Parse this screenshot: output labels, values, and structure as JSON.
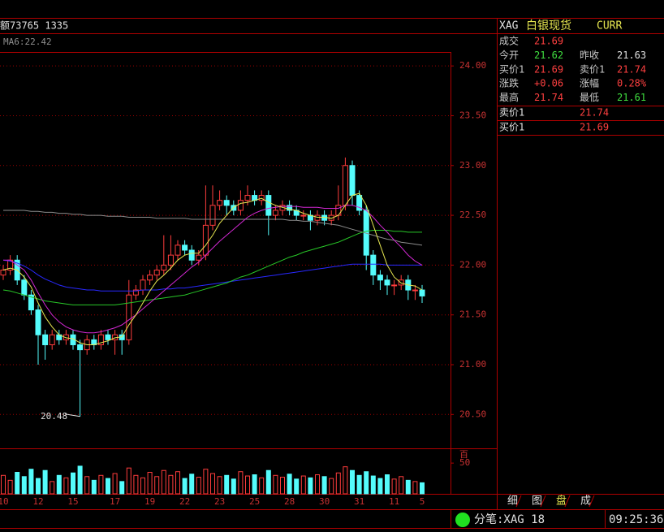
{
  "header": {
    "left": "额73765 1335",
    "ma": "MA6:22.42"
  },
  "chart_data": {
    "type": "candlestick",
    "categories": [
      "10",
      null,
      null,
      null,
      null,
      "12",
      null,
      null,
      null,
      null,
      "15",
      null,
      null,
      null,
      null,
      null,
      "17",
      null,
      null,
      null,
      null,
      "19",
      null,
      null,
      null,
      null,
      "22",
      null,
      null,
      null,
      null,
      "23",
      null,
      null,
      null,
      null,
      "25",
      null,
      null,
      null,
      null,
      "28",
      null,
      null,
      null,
      null,
      "30",
      null,
      null,
      null,
      null,
      "31",
      null,
      null,
      null,
      null,
      "11",
      null,
      null,
      null,
      "5"
    ],
    "open": [
      21.9,
      21.95,
      22.05,
      21.85,
      21.7,
      21.55,
      21.3,
      21.2,
      21.3,
      21.25,
      21.3,
      21.2,
      21.15,
      21.25,
      21.2,
      21.3,
      21.25,
      21.3,
      21.25,
      21.7,
      21.75,
      21.85,
      21.9,
      21.95,
      22.0,
      22.1,
      22.2,
      22.15,
      22.05,
      22.1,
      22.4,
      22.6,
      22.65,
      22.6,
      22.55,
      22.65,
      22.7,
      22.65,
      22.7,
      22.5,
      22.55,
      22.6,
      22.55,
      22.5,
      22.5,
      22.45,
      22.5,
      22.45,
      22.5,
      22.6,
      23.0,
      22.7,
      22.55,
      22.1,
      21.9,
      21.85,
      21.8,
      21.8,
      21.85,
      21.75,
      21.75
    ],
    "high": [
      22.0,
      22.1,
      22.1,
      21.9,
      21.75,
      21.6,
      21.35,
      21.35,
      21.35,
      21.35,
      21.35,
      21.25,
      21.3,
      21.3,
      21.35,
      21.35,
      21.35,
      21.35,
      21.85,
      21.8,
      21.9,
      21.95,
      22.0,
      22.3,
      22.3,
      22.25,
      22.25,
      22.2,
      22.15,
      22.8,
      22.8,
      22.75,
      22.7,
      22.65,
      22.75,
      22.8,
      22.75,
      22.75,
      22.75,
      22.6,
      22.65,
      22.65,
      22.6,
      22.55,
      22.55,
      22.55,
      22.55,
      22.55,
      22.8,
      23.08,
      23.05,
      22.75,
      22.6,
      22.15,
      21.95,
      21.9,
      21.85,
      21.9,
      21.9,
      21.8,
      21.8
    ],
    "low": [
      21.85,
      21.9,
      21.8,
      21.65,
      21.5,
      21.0,
      21.05,
      21.15,
      21.2,
      21.2,
      21.15,
      20.48,
      21.1,
      21.15,
      21.15,
      21.2,
      21.1,
      21.1,
      21.2,
      21.65,
      21.7,
      21.8,
      21.85,
      21.9,
      21.95,
      22.05,
      22.1,
      22.0,
      22.0,
      22.05,
      22.35,
      22.55,
      22.5,
      22.5,
      22.5,
      22.6,
      22.6,
      22.6,
      22.3,
      22.45,
      22.5,
      22.5,
      22.45,
      22.45,
      22.35,
      22.4,
      22.4,
      22.4,
      22.45,
      22.55,
      22.6,
      22.5,
      21.95,
      21.8,
      21.75,
      21.7,
      21.7,
      21.75,
      21.65,
      21.65,
      21.62
    ],
    "close": [
      21.95,
      22.05,
      21.85,
      21.7,
      21.55,
      21.3,
      21.2,
      21.3,
      21.25,
      21.3,
      21.2,
      21.15,
      21.25,
      21.2,
      21.3,
      21.25,
      21.3,
      21.25,
      21.7,
      21.75,
      21.85,
      21.9,
      21.95,
      22.0,
      22.1,
      22.2,
      22.15,
      22.05,
      22.1,
      22.4,
      22.6,
      22.65,
      22.6,
      22.55,
      22.65,
      22.7,
      22.65,
      22.7,
      22.5,
      22.55,
      22.6,
      22.55,
      22.5,
      22.5,
      22.45,
      22.5,
      22.45,
      22.5,
      22.6,
      23.0,
      22.7,
      22.55,
      22.1,
      21.9,
      21.85,
      21.8,
      21.8,
      21.85,
      21.75,
      21.75,
      21.69
    ],
    "up_color": "#ff3c3c",
    "down_color": "#54fcfc",
    "ma_lines": [
      {
        "color": "#8c8c8c",
        "values": [
          22.55,
          22.55,
          22.55,
          22.55,
          22.54,
          22.54,
          22.53,
          22.53,
          22.52,
          22.52,
          22.51,
          22.51,
          22.5,
          22.5,
          22.5,
          22.49,
          22.49,
          22.49,
          22.48,
          22.48,
          22.48,
          22.48,
          22.47,
          22.47,
          22.47,
          22.47,
          22.47,
          22.46,
          22.46,
          22.46,
          22.46,
          22.46,
          22.46,
          22.46,
          22.46,
          22.46,
          22.46,
          22.46,
          22.46,
          22.46,
          22.46,
          22.45,
          22.45,
          22.44,
          22.44,
          22.43,
          22.42,
          22.41,
          22.4,
          22.38,
          22.36,
          22.34,
          22.32,
          22.3,
          22.28,
          22.26,
          22.25,
          22.23,
          22.22,
          22.21,
          22.2
        ]
      },
      {
        "color": "#2828ff",
        "values": [
          22.05,
          22.04,
          22.02,
          21.99,
          21.95,
          21.9,
          21.86,
          21.83,
          21.8,
          21.78,
          21.77,
          21.76,
          21.75,
          21.75,
          21.74,
          21.74,
          21.74,
          21.74,
          21.74,
          21.74,
          21.75,
          21.75,
          21.75,
          21.76,
          21.76,
          21.77,
          21.77,
          21.78,
          21.79,
          21.8,
          21.81,
          21.82,
          21.83,
          21.84,
          21.85,
          21.86,
          21.87,
          21.88,
          21.89,
          21.9,
          21.91,
          21.92,
          21.93,
          21.94,
          21.95,
          21.96,
          21.97,
          21.98,
          21.99,
          22.0,
          22.01,
          22.01,
          22.01,
          22.01,
          22.01,
          22.0,
          22.0,
          22.0,
          22.0,
          22.0,
          22.0
        ]
      },
      {
        "color": "#28c828",
        "values": [
          21.75,
          21.74,
          21.72,
          21.7,
          21.68,
          21.66,
          21.64,
          21.63,
          21.62,
          21.61,
          21.6,
          21.6,
          21.6,
          21.6,
          21.6,
          21.6,
          21.6,
          21.61,
          21.62,
          21.63,
          21.64,
          21.65,
          21.66,
          21.67,
          21.68,
          21.69,
          21.7,
          21.72,
          21.74,
          21.76,
          21.78,
          21.8,
          21.82,
          21.85,
          21.88,
          21.9,
          21.93,
          21.96,
          21.99,
          22.02,
          22.05,
          22.08,
          22.1,
          22.13,
          22.15,
          22.17,
          22.19,
          22.21,
          22.23,
          22.26,
          22.29,
          22.32,
          22.34,
          22.35,
          22.35,
          22.35,
          22.34,
          22.34,
          22.33,
          22.33,
          22.33
        ]
      },
      {
        "color": "#d228d2",
        "values": [
          22.05,
          22.05,
          22.0,
          21.95,
          21.85,
          21.72,
          21.6,
          21.5,
          21.43,
          21.38,
          21.35,
          21.33,
          21.32,
          21.32,
          21.33,
          21.35,
          21.37,
          21.4,
          21.45,
          21.5,
          21.56,
          21.62,
          21.68,
          21.74,
          21.8,
          21.86,
          21.92,
          21.98,
          22.03,
          22.1,
          22.17,
          22.24,
          22.3,
          22.36,
          22.42,
          22.48,
          22.52,
          22.55,
          22.57,
          22.58,
          22.59,
          22.59,
          22.59,
          22.58,
          22.58,
          22.58,
          22.57,
          22.57,
          22.57,
          22.6,
          22.6,
          22.58,
          22.55,
          22.48,
          22.4,
          22.33,
          22.25,
          22.18,
          22.1,
          22.04,
          22.0
        ]
      },
      {
        "color": "#e6e650",
        "values": [
          21.95,
          21.97,
          21.95,
          21.88,
          21.78,
          21.62,
          21.48,
          21.38,
          21.3,
          21.27,
          21.26,
          21.22,
          21.2,
          21.2,
          21.22,
          21.24,
          21.27,
          21.28,
          21.4,
          21.5,
          21.62,
          21.74,
          21.84,
          21.9,
          21.97,
          22.05,
          22.1,
          22.12,
          22.12,
          22.2,
          22.3,
          22.42,
          22.5,
          22.58,
          22.62,
          22.63,
          22.65,
          22.67,
          22.63,
          22.6,
          22.58,
          22.56,
          22.55,
          22.52,
          22.5,
          22.48,
          22.48,
          22.47,
          22.5,
          22.6,
          22.7,
          22.72,
          22.6,
          22.4,
          22.2,
          22.0,
          21.88,
          21.82,
          21.8,
          21.79,
          21.75
        ]
      }
    ],
    "ylim": [
      20.16,
      24.14
    ],
    "yticks": [
      {
        "value": 20.5,
        "label": "20.50"
      },
      {
        "value": 21,
        "label": "21.00"
      },
      {
        "value": 21.5,
        "label": "21.50"
      },
      {
        "value": 22,
        "label": "22.00"
      },
      {
        "value": 22.5,
        "label": "22.50"
      },
      {
        "value": 23,
        "label": "23.00"
      },
      {
        "value": 23.5,
        "label": "23.50"
      },
      {
        "value": 24,
        "label": "24.00"
      }
    ],
    "grid": true,
    "volume": [
      30,
      22,
      35,
      28,
      40,
      25,
      38,
      20,
      30,
      26,
      34,
      45,
      28,
      22,
      30,
      25,
      33,
      20,
      42,
      30,
      26,
      35,
      28,
      38,
      30,
      36,
      25,
      32,
      27,
      40,
      33,
      28,
      30,
      24,
      36,
      29,
      31,
      26,
      38,
      30,
      27,
      32,
      24,
      29,
      26,
      31,
      28,
      25,
      34,
      44,
      38,
      30,
      36,
      29,
      25,
      31,
      24,
      28,
      22,
      20,
      18
    ],
    "volume_ylim": [
      0,
      70
    ],
    "volume_yticks": [
      50
    ],
    "volume_unit": "百"
  },
  "quote": {
    "symbol": "XAG",
    "name": "白银现货",
    "tag": "CURR",
    "rows": [
      [
        "成交",
        "21.69"
      ],
      [
        "今开",
        "21.62",
        "昨收",
        "21.63"
      ],
      [
        "买价1",
        "21.69",
        "卖价1",
        "21.74"
      ],
      [
        "涨跌",
        "+0.06",
        "涨幅",
        "0.28%"
      ],
      [
        "最高",
        "21.74",
        "最低",
        "21.61"
      ]
    ],
    "ask": [
      "卖价1",
      "21.74"
    ],
    "bid": [
      "买价1",
      "21.69"
    ]
  },
  "tabs": [
    "细",
    "图",
    "盘",
    "成"
  ],
  "status": {
    "label": "分笔:XAG 18",
    "time": "09:25:36"
  }
}
